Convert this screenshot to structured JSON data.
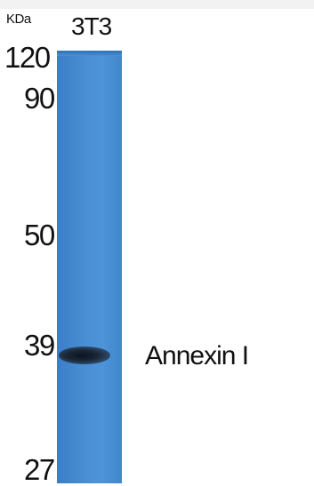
{
  "blot": {
    "unit": "KDa",
    "lane": "3T3",
    "markers": [
      "120",
      "90",
      "50",
      "39",
      "27"
    ],
    "band_label": "Annexin I",
    "lane_color": "#4a8fd4",
    "band_color": "#1a2636"
  }
}
